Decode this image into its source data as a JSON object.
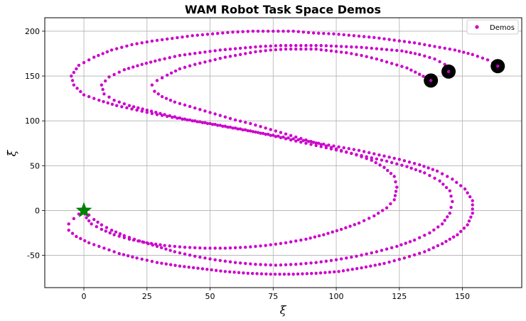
{
  "chart_data": {
    "type": "scatter",
    "title": "WAM Robot Task Space Demos",
    "xlabel": "ξ",
    "ylabel": "ξ̇",
    "xlim": [
      -15.5,
      173.5
    ],
    "ylim": [
      -86,
      215
    ],
    "xticks": [
      0,
      25,
      50,
      75,
      100,
      125,
      150
    ],
    "yticks": [
      -50,
      0,
      50,
      100,
      150,
      200
    ],
    "grid": true,
    "legend": {
      "placement": "top-right",
      "entries": [
        "Demos"
      ]
    },
    "colors": {
      "series": "#cc00cc",
      "start_marker": "#000000",
      "goal_marker": "#008000"
    },
    "goal": {
      "x": 0,
      "y": 0,
      "marker": "star"
    },
    "series": [
      {
        "name": "Demos",
        "demos": [
          {
            "start": {
              "x": 137.5,
              "y": 145
            },
            "x": [
              137.5,
              133,
              128,
              122,
              116,
              110,
              104,
              98,
              92,
              86,
              80,
              74,
              68,
              62,
              56,
              50,
              44,
              38,
              33,
              29,
              27,
              28,
              31,
              36,
              42,
              48,
              54,
              60,
              66,
              72,
              78,
              84,
              90,
              96,
              102,
              108,
              114,
              119,
              123,
              124,
              123,
              120,
              115,
              109,
              102,
              95,
              88,
              80,
              72,
              64,
              56,
              48,
              40,
              32,
              25,
              18,
              12,
              7,
              3,
              1,
              0
            ],
            "y": [
              145,
              152,
              159,
              164,
              169,
              173,
              176,
              178,
              180,
              180,
              180,
              179,
              177,
              174,
              171,
              167,
              163,
              158,
              151,
              145,
              140,
              133,
              127,
              121,
              116,
              111,
              106,
              101,
              97,
              92,
              87,
              82,
              77,
              72,
              67,
              62,
              56,
              48,
              38,
              26,
              12,
              3,
              -6,
              -14,
              -21,
              -27,
              -32,
              -36,
              -39,
              -41,
              -42,
              -42,
              -41,
              -39,
              -36,
              -32,
              -27,
              -21,
              -15,
              -8,
              0
            ]
          },
          {
            "start": {
              "x": 144.5,
              "y": 155
            },
            "x": [
              144.5,
              143,
              139,
              133,
              126,
              118,
              110,
              102,
              94,
              86,
              78,
              70,
              62,
              54,
              46,
              38,
              30,
              23,
              16,
              10,
              7,
              8,
              12,
              18,
              25,
              32,
              40,
              48,
              56,
              64,
              72,
              80,
              88,
              96,
              104,
              112,
              120,
              128,
              135,
              141,
              145,
              146,
              145,
              142,
              137,
              131,
              124,
              116,
              108,
              100,
              92,
              84,
              76,
              68,
              60,
              52,
              44,
              36,
              29,
              22,
              16,
              11,
              7,
              4,
              2,
              0
            ],
            "y": [
              155,
              163,
              169,
              174,
              178,
              180,
              182,
              183,
              184,
              184,
              184,
              183,
              181,
              179,
              176,
              173,
              168,
              163,
              157,
              149,
              140,
              130,
              123,
              117,
              112,
              107,
              102,
              98,
              94,
              90,
              85,
              80,
              75,
              70,
              65,
              60,
              55,
              49,
              42,
              33,
              22,
              10,
              -3,
              -15,
              -25,
              -33,
              -40,
              -46,
              -51,
              -55,
              -58,
              -60,
              -61,
              -60,
              -58,
              -55,
              -51,
              -46,
              -40,
              -34,
              -28,
              -22,
              -16,
              -10,
              -5,
              0
            ]
          },
          {
            "start": {
              "x": 164,
              "y": 161
            },
            "x": [
              164,
              160,
              154,
              147,
              139,
              131,
              123,
              115,
              107,
              99,
              91,
              83,
              75,
              67,
              59,
              51,
              43,
              35,
              27,
              19,
              11,
              4,
              -2,
              -5,
              -4,
              0,
              6,
              13,
              21,
              29,
              37,
              45,
              53,
              61,
              69,
              77,
              85,
              93,
              101,
              109,
              117,
              125,
              133,
              140,
              146,
              151,
              154,
              154,
              152,
              148,
              142,
              135,
              127,
              119,
              110,
              101,
              92,
              83,
              74,
              65,
              56,
              47,
              38,
              29,
              21,
              14,
              8,
              2,
              -3,
              -6,
              -6,
              -4,
              -2,
              0
            ],
            "y": [
              161,
              168,
              174,
              179,
              183,
              187,
              190,
              193,
              195,
              197,
              198,
              200,
              200,
              200,
              199,
              197,
              195,
              192,
              189,
              185,
              179,
              171,
              162,
              150,
              140,
              129,
              123,
              117,
              112,
              107,
              103,
              99,
              95,
              91,
              87,
              83,
              79,
              75,
              71,
              67,
              62,
              57,
              51,
              44,
              35,
              24,
              11,
              -3,
              -16,
              -27,
              -37,
              -46,
              -53,
              -59,
              -64,
              -68,
              -70,
              -71,
              -71,
              -70,
              -68,
              -65,
              -62,
              -58,
              -53,
              -48,
              -42,
              -36,
              -29,
              -22,
              -15,
              -9,
              -4,
              0
            ]
          }
        ]
      }
    ]
  }
}
